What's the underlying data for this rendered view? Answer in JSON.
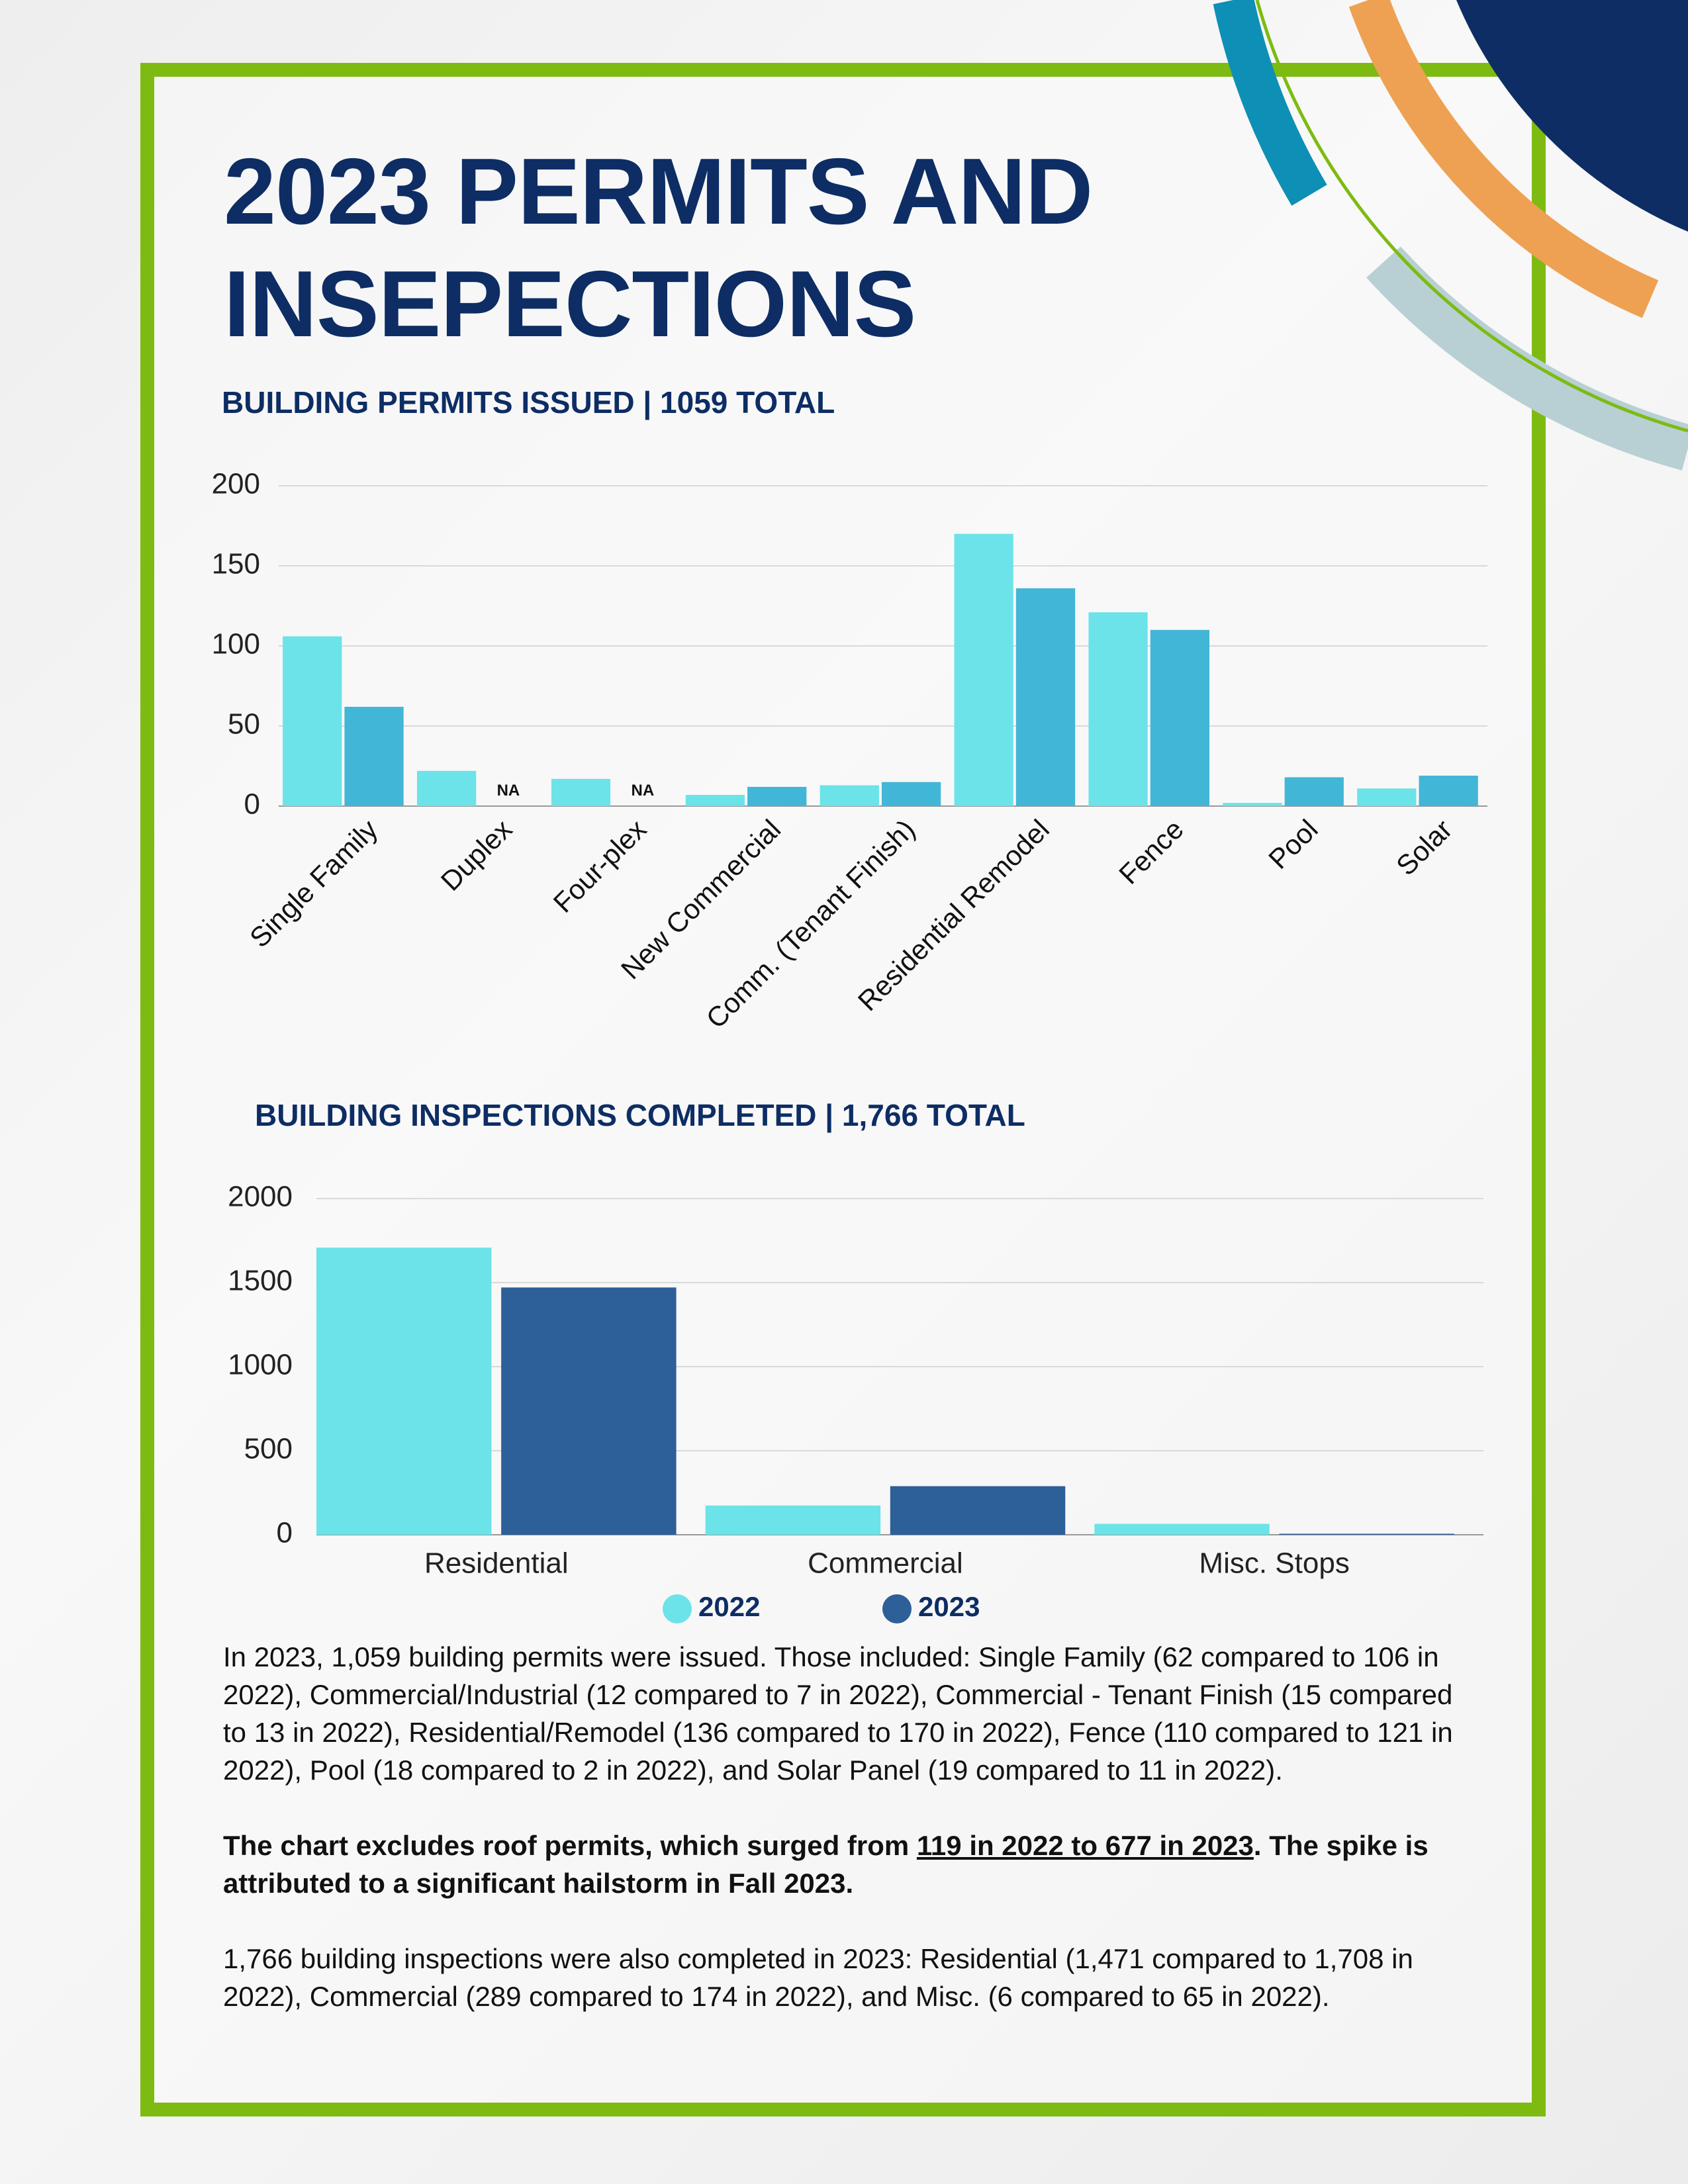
{
  "title": "2023 PERMITS AND INSEPECTIONS",
  "chart_data": [
    {
      "type": "bar",
      "title": "BUILDING PERMITS ISSUED | 1059 TOTAL",
      "categories": [
        "Single Family",
        "Duplex",
        "Four-plex",
        "New Commercial",
        "Comm. (Tenant Finish)",
        "Residential Remodel",
        "Fence",
        "Pool",
        "Solar"
      ],
      "series": [
        {
          "color": "#6ce3e8",
          "values": [
            106,
            22,
            17,
            7,
            13,
            170,
            121,
            2,
            11
          ]
        },
        {
          "color": "#42b6d6",
          "values": [
            62,
            null,
            null,
            12,
            15,
            136,
            110,
            18,
            19
          ],
          "value_labels": [
            null,
            "NA",
            "NA",
            null,
            null,
            null,
            null,
            null,
            null
          ]
        }
      ],
      "ylim": [
        0,
        200
      ],
      "yticks": [
        0,
        50,
        100,
        150,
        200
      ],
      "grid": true
    },
    {
      "type": "bar",
      "title": "BUILDING INSPECTIONS COMPLETED | 1,766 TOTAL",
      "categories": [
        "Residential",
        "Commercial",
        "Misc. Stops"
      ],
      "series": [
        {
          "name": "2022",
          "color": "#6ce3e8",
          "values": [
            1708,
            174,
            65
          ]
        },
        {
          "name": "2023",
          "color": "#2d5f98",
          "values": [
            1471,
            289,
            6
          ]
        }
      ],
      "ylim": [
        0,
        2000
      ],
      "yticks": [
        0,
        500,
        1000,
        1500,
        2000
      ],
      "grid": true,
      "legend": "bottom"
    }
  ],
  "summary": "In 2023, 1,059 building permits were issued. Those included: Single Family (62 compared to 106 in 2022), Commercial/Industrial (12 compared to 7 in 2022), Commercial - Tenant Finish (15 compared to 13 in 2022), Residential/Remodel (136 compared to 170 in 2022), Fence (110 compared to 121 in 2022), Pool (18 compared to 2 in 2022), and Solar Panel (19 compared to 11 in 2022).",
  "note": {
    "before": "The chart excludes roof permits, which surged from ",
    "highlight": "119 in 2022 to 677 in 2023",
    "after": ". The spike is attributed to a significant hailstorm in Fall 2023."
  },
  "inspections_summary": "1,766 building inspections were also completed in 2023: Residential (1,471 compared to 1,708 in 2022), Commercial (289 compared to 174 in 2022), and Misc. (6 compared to 65 in 2022)."
}
